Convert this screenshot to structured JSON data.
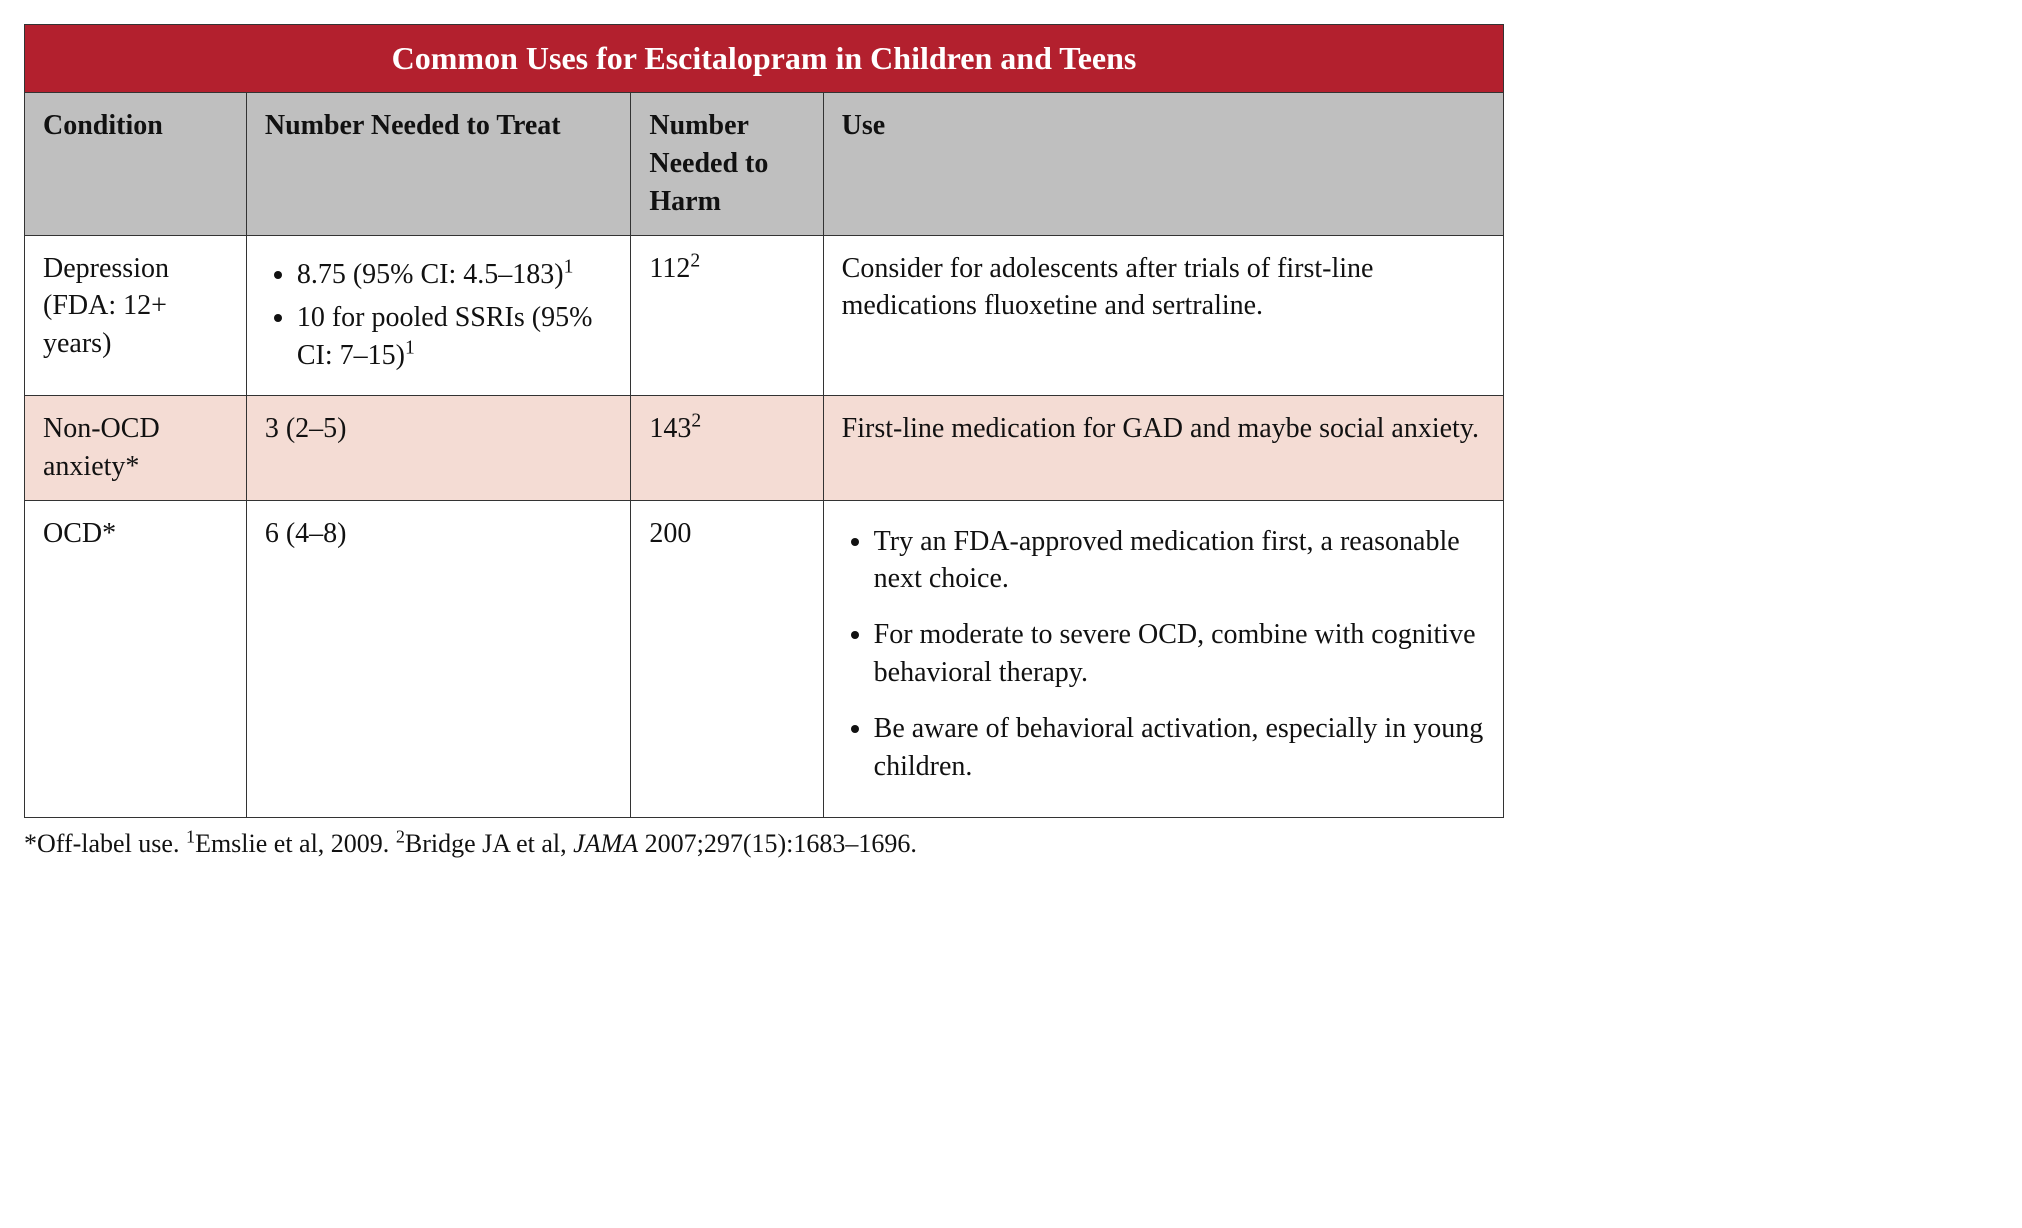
{
  "colors": {
    "title_bg": "#b3202e",
    "title_fg": "#ffffff",
    "header_bg": "#bfbfbf",
    "row_alt_bg": "#f4dcd4",
    "border": "#333333",
    "text": "#111111",
    "background": "#ffffff"
  },
  "typography": {
    "font_family": "Georgia serif",
    "title_fontsize_pt": 24,
    "cell_fontsize_pt": 21,
    "footnote_fontsize_pt": 19
  },
  "table": {
    "title": "Common Uses for Escitalopram in Children and Teens",
    "column_widths_pct": [
      15,
      26,
      13,
      46
    ],
    "columns": [
      "Condition",
      "Number Needed to Treat",
      "Number Needed to Harm",
      "Use"
    ],
    "rows": [
      {
        "alt": false,
        "condition": "Depression (FDA: 12+ years)",
        "nnt": {
          "type": "list",
          "items": [
            {
              "text": "8.75 (95% CI: 4.5–183)",
              "sup": "1"
            },
            {
              "text": "10 for pooled SSRIs (95% CI: 7–15)",
              "sup": "1"
            }
          ]
        },
        "nnh": {
          "text": "112",
          "sup": "2"
        },
        "use": {
          "type": "text",
          "text": "Consider for adolescents after trials of first-line medications fluoxetine and sertraline."
        }
      },
      {
        "alt": true,
        "condition": "Non-OCD anxiety*",
        "nnt": {
          "type": "text",
          "text": "3 (2–5)"
        },
        "nnh": {
          "text": "143",
          "sup": "2"
        },
        "use": {
          "type": "text",
          "text": "First-line medication for GAD and maybe social anxiety."
        }
      },
      {
        "alt": false,
        "condition": "OCD*",
        "nnt": {
          "type": "text",
          "text": "6 (4–8)"
        },
        "nnh": {
          "text": "200"
        },
        "use": {
          "type": "list",
          "items": [
            {
              "text": "Try an FDA-approved medication first, a reasonable next choice."
            },
            {
              "text": "For moderate to severe OCD, combine with cognitive behavioral therapy."
            },
            {
              "text": "Be aware of behavioral activation, especially in young children."
            }
          ]
        }
      }
    ]
  },
  "footnote": {
    "offlabel": "*Off-label use. ",
    "ref1_label": "1",
    "ref1_text": "Emslie et al, 2009. ",
    "ref2_label": "2",
    "ref2_text_pre": "Bridge JA et al, ",
    "ref2_journal": "JAMA",
    "ref2_text_post": " 2007;297(15):1683–1696."
  }
}
